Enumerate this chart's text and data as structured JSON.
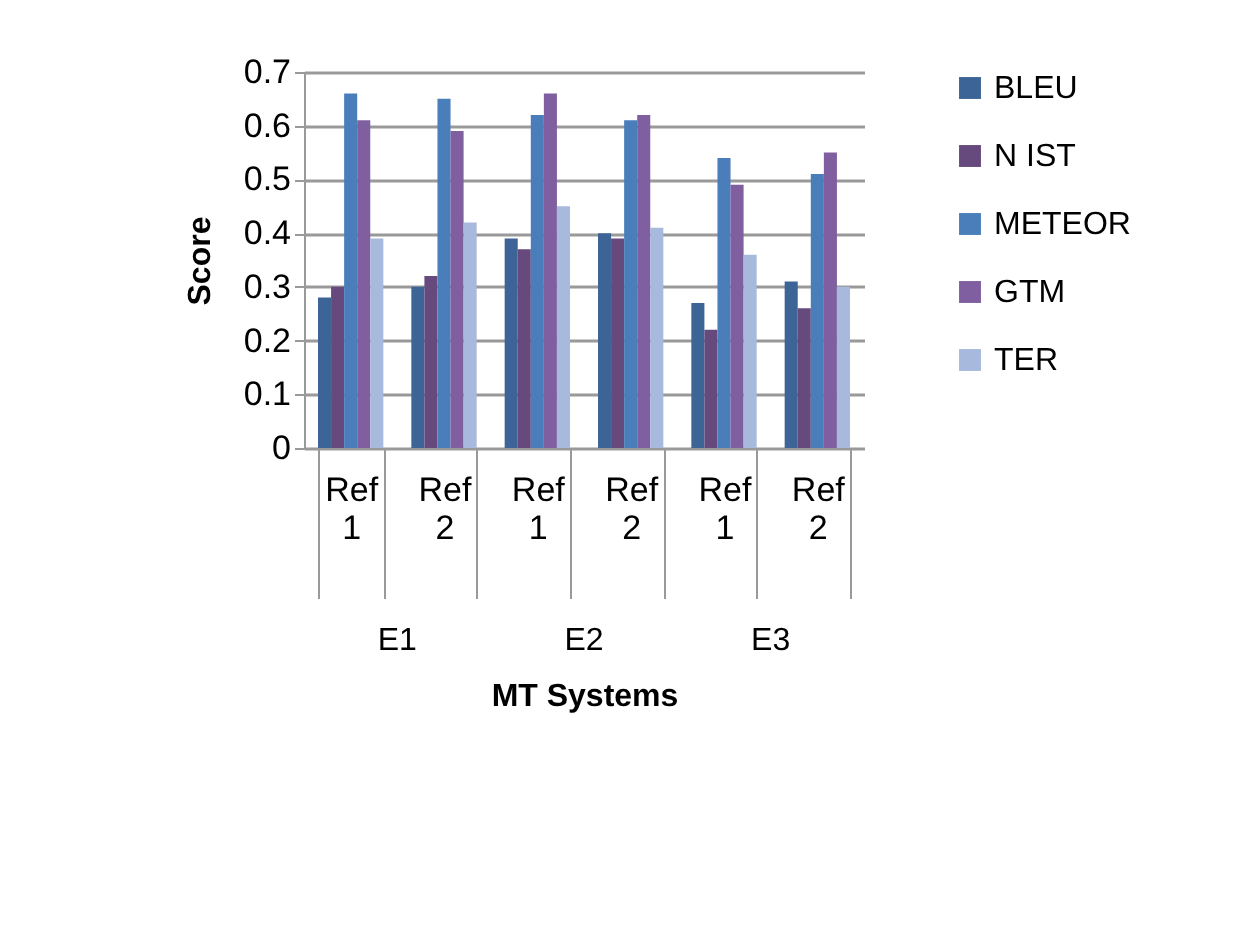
{
  "chart_data": {
    "type": "bar",
    "ylabel": "Score",
    "xlabel": "MT Systems",
    "categories": [
      "Ref 1",
      "Ref 2",
      "Ref 1",
      "Ref 2",
      "Ref 1",
      "Ref 2"
    ],
    "annotations": [
      "E1",
      "E2",
      "E3"
    ],
    "series": [
      {
        "name": "BLEU",
        "color": "#3c6496",
        "values": [
          0.28,
          0.3,
          0.39,
          0.4,
          0.27,
          0.31
        ]
      },
      {
        "name": "N IST",
        "color": "#664a7e",
        "values": [
          0.3,
          0.32,
          0.37,
          0.39,
          0.22,
          0.26
        ]
      },
      {
        "name": "METEOR",
        "color": "#4a7ebb",
        "values": [
          0.66,
          0.65,
          0.62,
          0.61,
          0.54,
          0.51
        ]
      },
      {
        "name": "GTM",
        "color": "#7f5f9f",
        "values": [
          0.61,
          0.59,
          0.66,
          0.62,
          0.49,
          0.55
        ]
      },
      {
        "name": "TER",
        "color": "#a7b9dc",
        "values": [
          0.39,
          0.42,
          0.45,
          0.41,
          0.36,
          0.3
        ]
      }
    ],
    "ylim": [
      0,
      0.7
    ],
    "yticks": [
      0,
      0.1,
      0.2,
      0.3,
      0.4,
      0.5,
      0.6,
      0.7
    ],
    "grid": "y",
    "legend": "right"
  }
}
